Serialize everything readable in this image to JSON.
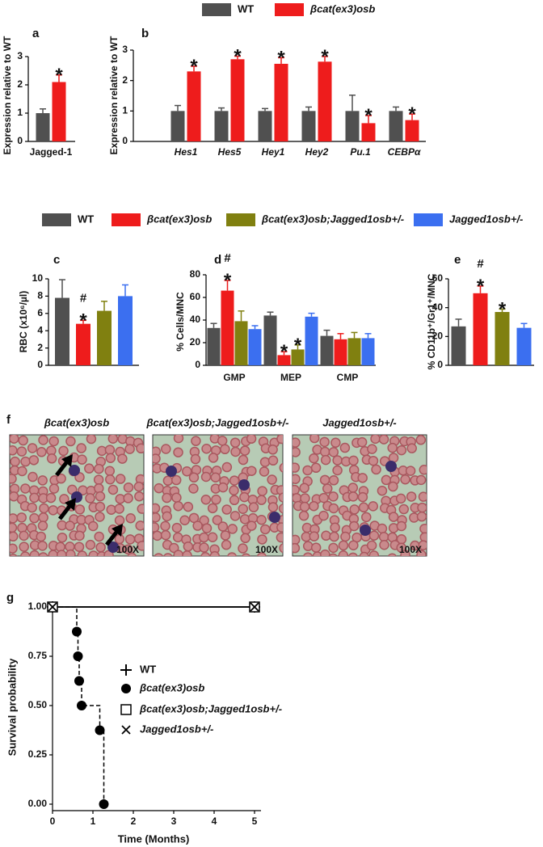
{
  "chart_data": [
    {
      "type": "bar",
      "title": "a",
      "ylabel": "Expression relative to WT",
      "categories": [
        "Jagged-1"
      ],
      "ylim": [
        0,
        3
      ],
      "yticks": [
        0,
        1,
        2,
        3
      ],
      "series": [
        {
          "color": "#505050",
          "values": [
            1.0
          ],
          "errors": [
            0.15
          ]
        },
        {
          "color": "#ee1c1c",
          "values": [
            2.1
          ],
          "errors": [
            0.25
          ],
          "significance": [
            [
              "*"
            ]
          ]
        }
      ]
    },
    {
      "type": "bar",
      "title": "b",
      "ylabel": "Expression relative to WT",
      "categories": [
        "Hes1",
        "Hes5",
        "Hey1",
        "Hey2",
        "Pu.1",
        "CEBPα"
      ],
      "ylim": [
        0,
        3
      ],
      "yticks": [
        0,
        1,
        2,
        3
      ],
      "series": [
        {
          "name": "WT",
          "color": "#505050",
          "values": [
            1,
            1,
            1,
            1,
            1,
            1
          ],
          "errors": [
            0.18,
            0.1,
            0.08,
            0.13,
            0.52,
            0.13
          ]
        },
        {
          "name": "βcat(ex3)osb",
          "color": "#ee1c1c",
          "values": [
            2.3,
            2.7,
            2.55,
            2.62,
            0.6,
            0.7
          ],
          "errors": [
            0.17,
            0.1,
            0.2,
            0.17,
            0.25,
            0.2
          ],
          "significance": [
            [
              "*"
            ],
            [
              "*"
            ],
            [
              "*"
            ],
            [
              "*"
            ],
            [
              "*"
            ],
            [
              "*"
            ]
          ]
        }
      ]
    },
    {
      "type": "bar",
      "title": "c",
      "ylabel": "RBC (x10⁶/µl)",
      "ylim": [
        0,
        10
      ],
      "yticks": [
        0,
        2,
        4,
        6,
        8,
        10
      ],
      "series": [
        {
          "name": "WT",
          "color": "#505050",
          "values": [
            7.8
          ],
          "errors": [
            2.1
          ]
        },
        {
          "name": "βcat(ex3)osb",
          "color": "#ee1c1c",
          "values": [
            4.8
          ],
          "errors": [
            0.4
          ],
          "significance": [
            [
              "#",
              "*"
            ]
          ]
        },
        {
          "name": "βcat(ex3)osb;Jagged1osb+/-",
          "color": "#808010",
          "values": [
            6.3
          ],
          "errors": [
            1.1
          ]
        },
        {
          "name": "Jagged1osb+/-",
          "color": "#3b6ff0",
          "values": [
            8.0
          ],
          "errors": [
            1.3
          ]
        }
      ]
    },
    {
      "type": "bar",
      "title": "d",
      "ylabel": "% Cells/MNC",
      "categories": [
        "GMP",
        "MEP",
        "CMP"
      ],
      "ylim": [
        0,
        80
      ],
      "yticks": [
        0,
        20,
        40,
        60,
        80
      ],
      "series": [
        {
          "color": "#505050",
          "values": [
            33,
            44,
            26
          ],
          "errors": [
            4,
            3,
            5
          ]
        },
        {
          "color": "#ee1c1c",
          "values": [
            66,
            9,
            23
          ],
          "errors": [
            9,
            3,
            5
          ],
          "significance": [
            [
              "#",
              "*"
            ],
            [
              "*"
            ],
            null
          ]
        },
        {
          "color": "#808010",
          "values": [
            39,
            14,
            24
          ],
          "errors": [
            9,
            4,
            5
          ],
          "significance": [
            null,
            [
              "*"
            ],
            null
          ]
        },
        {
          "color": "#3b6ff0",
          "values": [
            32,
            43,
            24
          ],
          "errors": [
            3,
            3,
            4
          ]
        }
      ]
    },
    {
      "type": "bar",
      "title": "e",
      "ylabel": "% CD11b⁺/Gr1⁺/MNC",
      "ylim": [
        0,
        60
      ],
      "yticks": [
        0,
        20,
        40,
        60
      ],
      "series": [
        {
          "color": "#505050",
          "values": [
            27
          ],
          "errors": [
            5
          ]
        },
        {
          "color": "#ee1c1c",
          "values": [
            50
          ],
          "errors": [
            5
          ],
          "significance": [
            [
              "#",
              "*"
            ]
          ]
        },
        {
          "color": "#808010",
          "values": [
            37
          ],
          "errors": [
            2
          ],
          "significance": [
            [
              "*"
            ]
          ]
        },
        {
          "color": "#3b6ff0",
          "values": [
            26
          ],
          "errors": [
            3
          ]
        }
      ]
    },
    {
      "type": "line",
      "title": "g",
      "xlabel": "Time (Months)",
      "ylabel": "Survival probability",
      "step": true,
      "xlim": [
        0,
        5
      ],
      "xticks": [
        0,
        1,
        2,
        3,
        4,
        5
      ],
      "ylim": [
        0,
        1
      ],
      "yticks": [
        {
          "value": 0,
          "label": "0.00"
        },
        {
          "value": 0.25,
          "label": "0.25"
        },
        {
          "value": 0.5,
          "label": "0.50"
        },
        {
          "value": 0.75,
          "label": "0.75"
        },
        {
          "value": 1,
          "label": "1.00"
        }
      ],
      "series": [
        {
          "name": "WT",
          "color": "#000000",
          "marker": "plus",
          "line_style": "solid",
          "x": [
            0,
            5
          ],
          "values": [
            1,
            1
          ]
        },
        {
          "name": "βcat(ex3)osb",
          "color": "#000000",
          "marker": "circle",
          "line_style": "dashed",
          "x": [
            0,
            0.6,
            0.63,
            0.66,
            0.72,
            1.17,
            1.27
          ],
          "values": [
            1,
            0.875,
            0.75,
            0.625,
            0.5,
            0.375,
            0
          ]
        },
        {
          "name": "βcat(ex3)osb;Jagged1osb+/-",
          "color": "#000000",
          "marker": "square",
          "line_style": "solid",
          "x": [
            0,
            5
          ],
          "values": [
            1,
            1
          ]
        },
        {
          "name": "Jagged1osb+/-",
          "color": "#000000",
          "marker": "x",
          "line_style": "solid",
          "x": [
            0,
            5
          ],
          "values": [
            1,
            1
          ]
        }
      ]
    }
  ],
  "panel_f": {
    "label": "f",
    "images": [
      {
        "caption": "βcat(ex3)osb",
        "magnification": "100X"
      },
      {
        "caption": "βcat(ex3)osb;Jagged1osb+/-",
        "magnification": "100X"
      },
      {
        "caption": "Jagged1osb+/-",
        "magnification": "100X"
      }
    ]
  }
}
